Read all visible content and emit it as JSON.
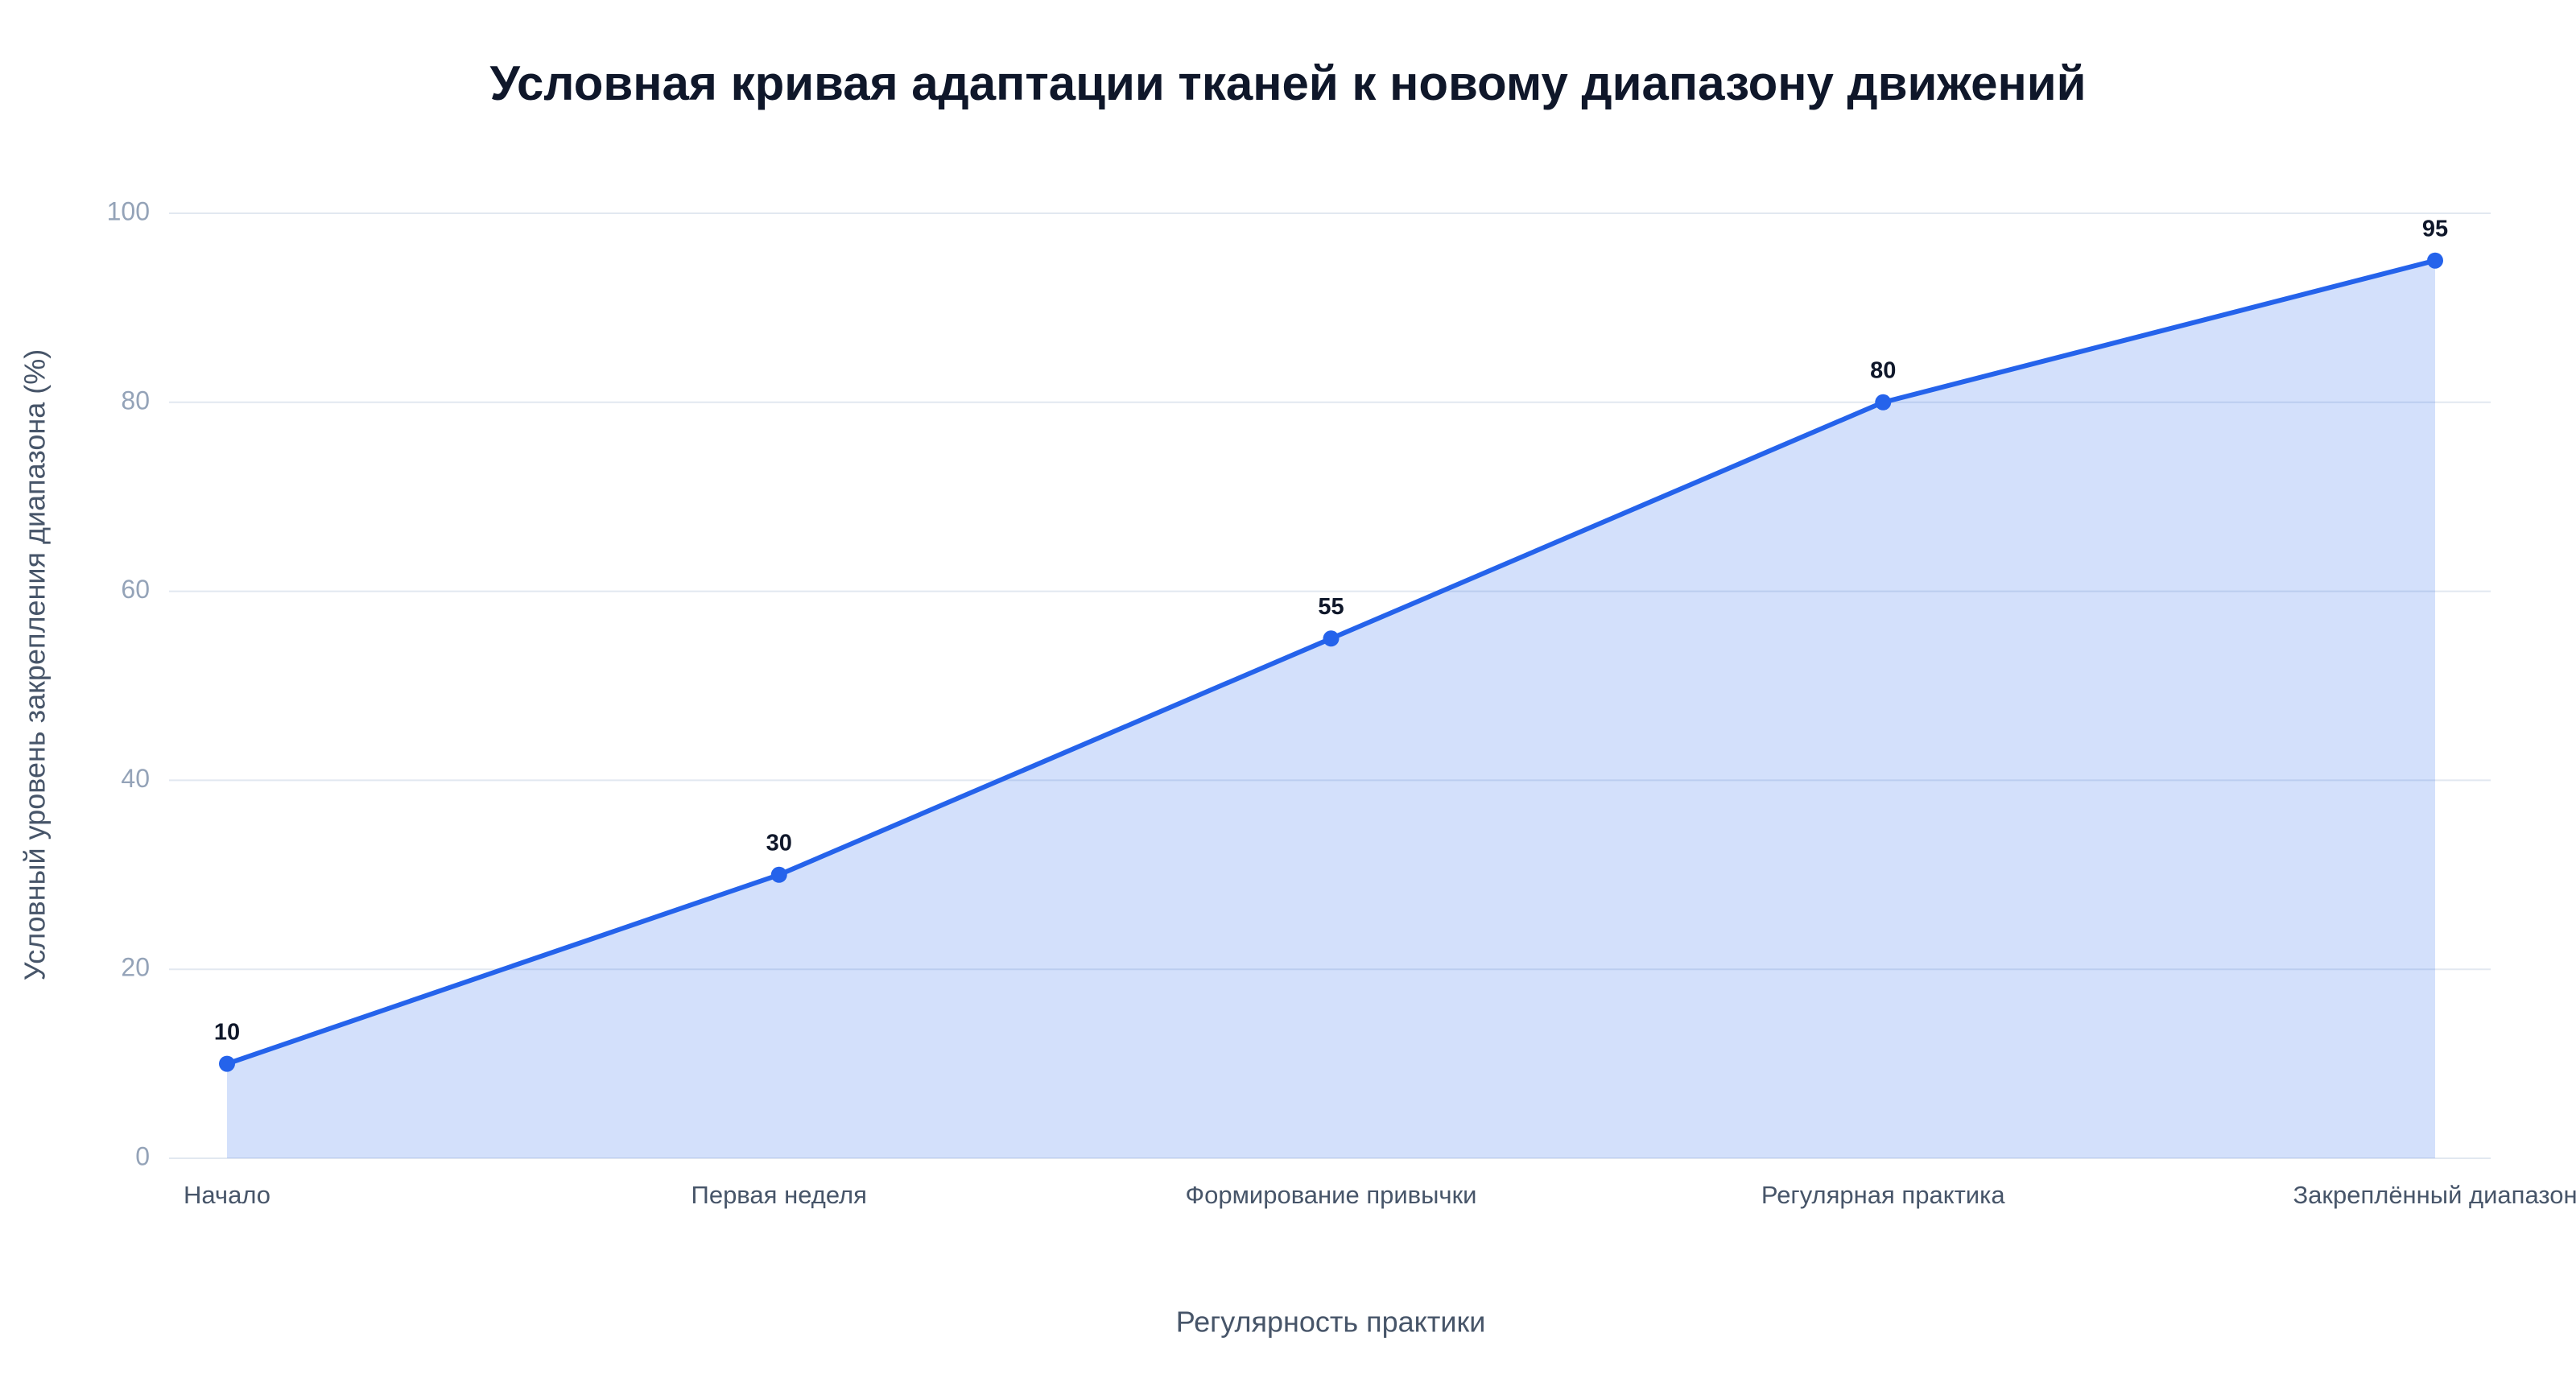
{
  "chart_data": {
    "type": "area",
    "title": "Условная кривая адаптации тканей к новому диапазону движений",
    "x_label": "Регулярность практики",
    "y_label": "Условный уровень закрепления диапазона (%)",
    "categories": [
      "Начало",
      "Первая неделя",
      "Формирование привычки",
      "Регулярная практика",
      "Закреплённый диапазон"
    ],
    "values": [
      10,
      30,
      55,
      80,
      95
    ],
    "color": "#2563eb",
    "ylim": [
      0,
      100
    ],
    "yticks": [
      0,
      20,
      40,
      60,
      80,
      100
    ],
    "grid": true
  }
}
